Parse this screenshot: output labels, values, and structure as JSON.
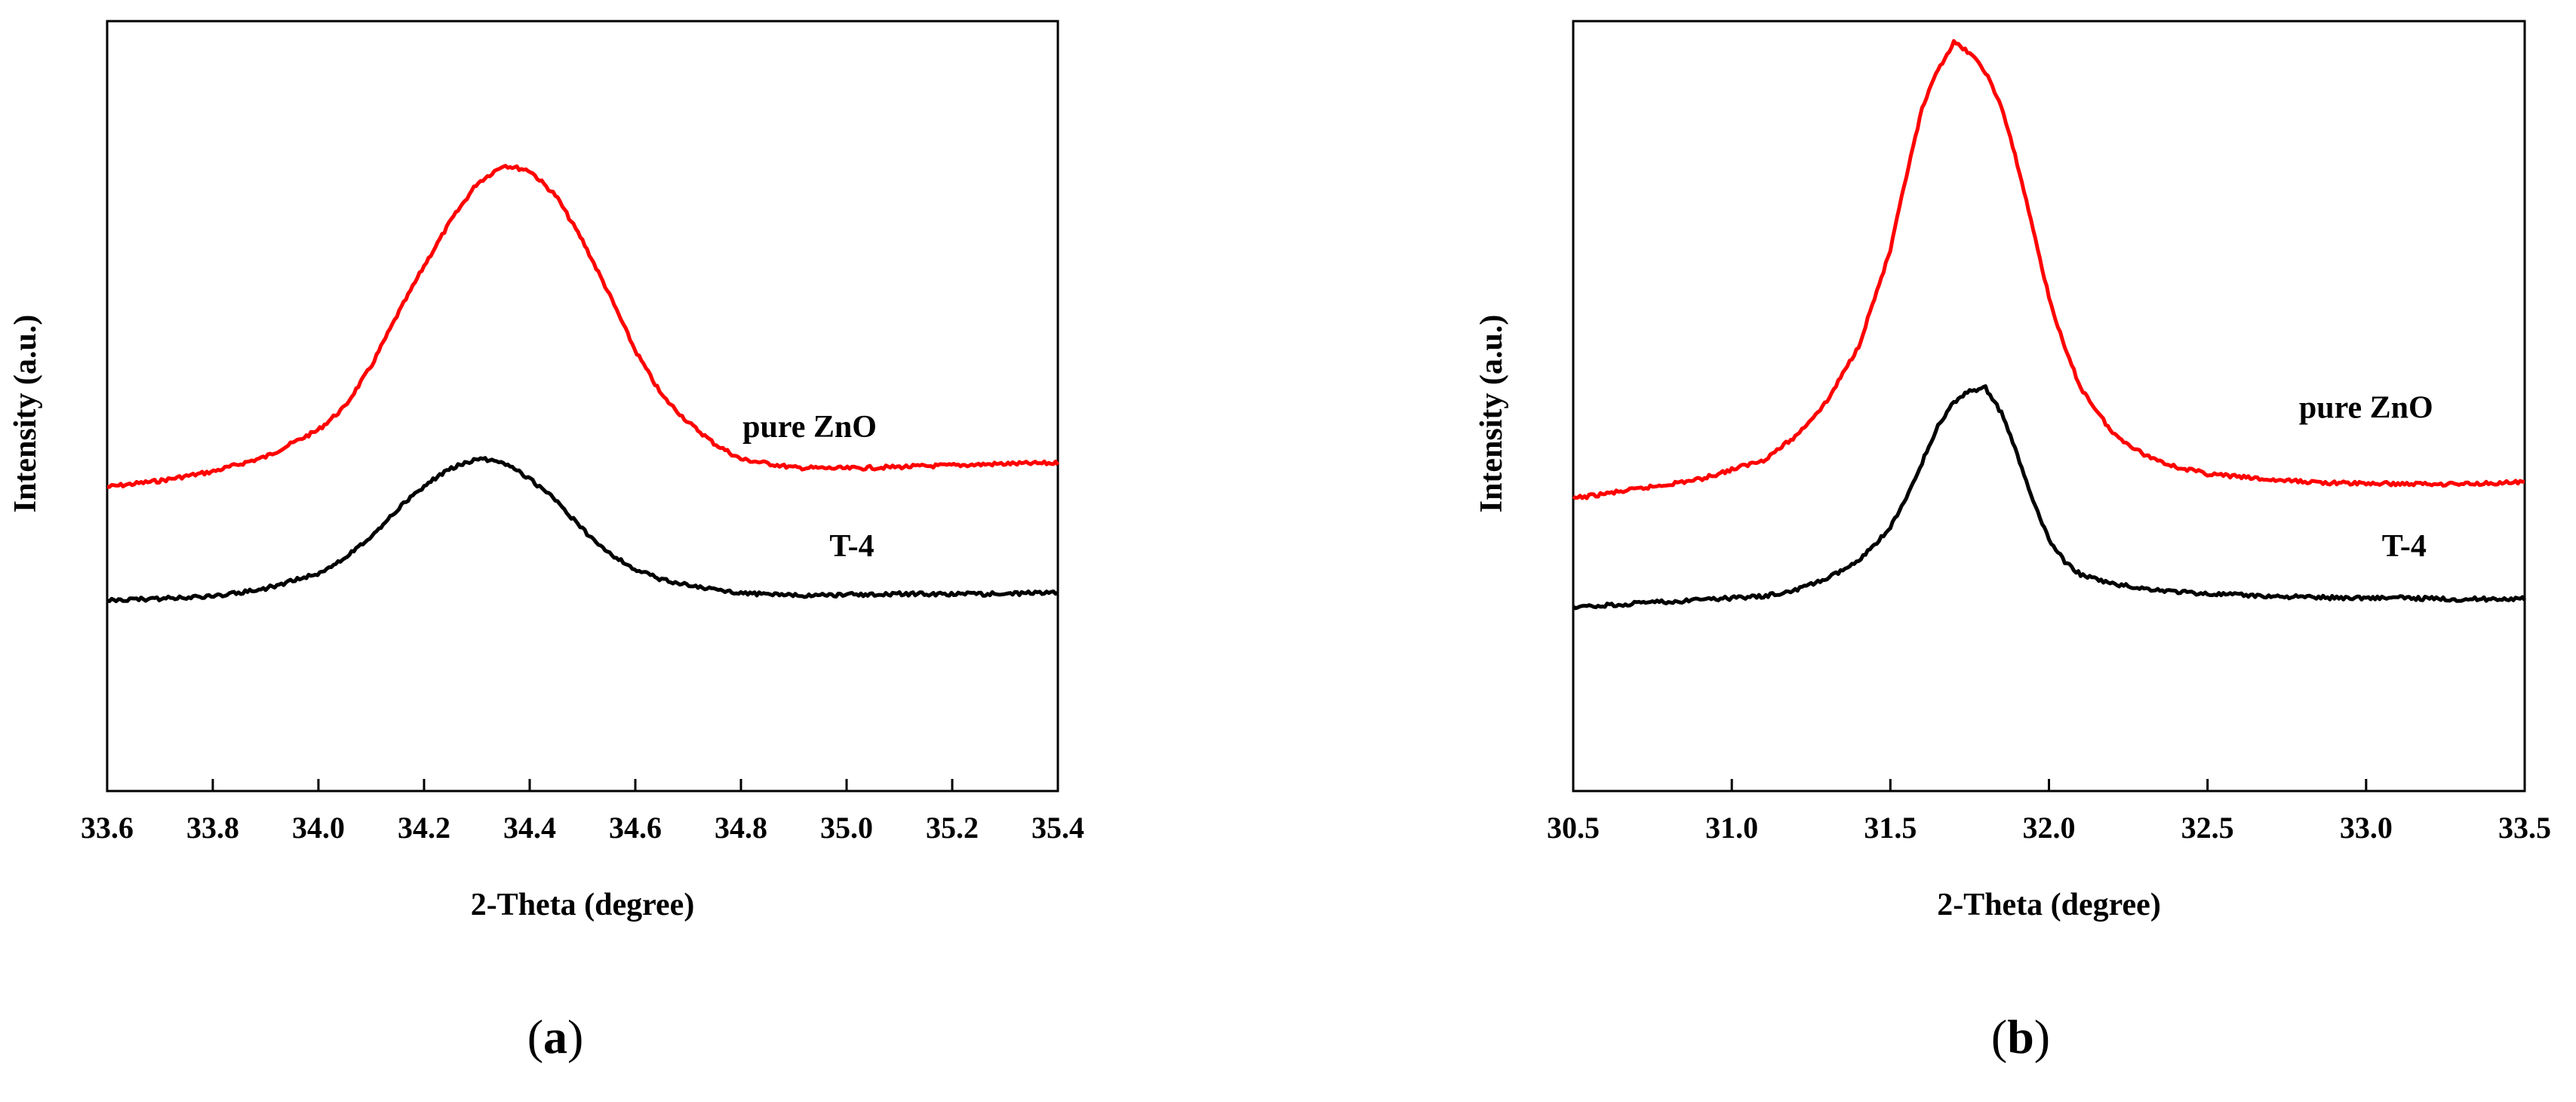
{
  "chart_data": [
    {
      "panel": "a",
      "caption": {
        "open": "(",
        "letter": "a",
        "close": ")"
      },
      "type": "line",
      "xlabel": "2-Theta (degree)",
      "ylabel": "Intensity (a.u.)",
      "xlim": [
        33.6,
        35.4
      ],
      "ylim": [
        0,
        100
      ],
      "xticks": [
        "33.6",
        "33.8",
        "34.0",
        "34.2",
        "34.4",
        "34.6",
        "34.8",
        "35.0",
        "35.2",
        "35.4"
      ],
      "grid": false,
      "series": [
        {
          "name": "pure ZnO",
          "color": "#ff0000",
          "x": [
            33.6,
            33.7,
            33.8,
            33.9,
            34.0,
            34.05,
            34.1,
            34.15,
            34.2,
            34.25,
            34.3,
            34.35,
            34.4,
            34.45,
            34.5,
            34.55,
            34.6,
            34.65,
            34.7,
            34.75,
            34.8,
            34.9,
            35.0,
            35.1,
            35.2,
            35.3,
            35.4
          ],
          "y": [
            39.5,
            40.3,
            41.5,
            43.4,
            46.9,
            49.9,
            55.2,
            61.9,
            68.2,
            74.0,
            78.9,
            81.3,
            80.6,
            77.3,
            71.5,
            64.6,
            57.2,
            51.4,
            47.9,
            45.1,
            43.1,
            42.0,
            41.9,
            42.1,
            42.3,
            42.5,
            42.6
          ],
          "label_at": [
            34.93,
            46
          ]
        },
        {
          "name": "T-4",
          "color": "#000000",
          "x": [
            33.6,
            33.7,
            33.8,
            33.9,
            34.0,
            34.05,
            34.1,
            34.15,
            34.2,
            34.25,
            34.3,
            34.35,
            34.4,
            34.45,
            34.5,
            34.55,
            34.6,
            34.65,
            34.7,
            34.75,
            34.8,
            34.9,
            35.0,
            35.1,
            35.2,
            35.3,
            35.4
          ],
          "y": [
            24.8,
            25.0,
            25.3,
            26.3,
            28.3,
            30.3,
            33.1,
            36.6,
            39.6,
            41.9,
            43.2,
            42.7,
            40.6,
            37.7,
            34.0,
            30.9,
            28.7,
            27.5,
            26.7,
            26.1,
            25.7,
            25.4,
            25.5,
            25.6,
            25.6,
            25.6,
            25.8
          ],
          "label_at": [
            35.01,
            30.5
          ]
        }
      ]
    },
    {
      "panel": "b",
      "caption": {
        "open": "(",
        "letter": "b",
        "close": ")"
      },
      "type": "line",
      "xlabel": "2-Theta (degree)",
      "ylabel": "Intensity (a.u.)",
      "xlim": [
        30.5,
        33.5
      ],
      "ylim": [
        0,
        100
      ],
      "xticks": [
        "30.5",
        "31.0",
        "31.5",
        "32.0",
        "32.5",
        "33.0",
        "33.5"
      ],
      "grid": false,
      "series": [
        {
          "name": "pure ZnO",
          "color": "#ff0000",
          "x": [
            30.5,
            30.7,
            30.9,
            31.1,
            31.2,
            31.3,
            31.4,
            31.5,
            31.55,
            31.6,
            31.65,
            31.7,
            31.75,
            31.8,
            31.85,
            31.9,
            31.95,
            32.0,
            32.05,
            32.1,
            32.2,
            32.3,
            32.4,
            32.5,
            32.7,
            32.9,
            33.1,
            33.3,
            33.5
          ],
          "y": [
            38.0,
            39.2,
            40.5,
            43.0,
            46.0,
            50.6,
            57.8,
            70.2,
            79.8,
            88.6,
            93.7,
            97.2,
            95.9,
            93.4,
            88.9,
            81.5,
            73.0,
            64.1,
            57.5,
            52.4,
            46.5,
            43.7,
            42.1,
            41.2,
            40.4,
            40.0,
            39.9,
            39.9,
            40.1
          ],
          "label_at": [
            33.0,
            48.5
          ]
        },
        {
          "name": "T-4",
          "color": "#000000",
          "x": [
            30.5,
            30.7,
            30.9,
            31.1,
            31.2,
            31.3,
            31.4,
            31.5,
            31.55,
            31.6,
            31.65,
            31.7,
            31.75,
            31.8,
            31.85,
            31.9,
            31.95,
            32.0,
            32.05,
            32.1,
            32.2,
            32.3,
            32.4,
            32.5,
            32.7,
            32.9,
            33.1,
            33.3,
            33.5
          ],
          "y": [
            23.8,
            24.4,
            24.8,
            25.3,
            26.1,
            27.6,
            29.8,
            34.2,
            38.0,
            42.7,
            47.4,
            50.5,
            52.0,
            52.4,
            49.1,
            43.7,
            37.6,
            32.6,
            29.8,
            28.1,
            26.9,
            26.3,
            25.9,
            25.6,
            25.3,
            25.1,
            25.1,
            24.9,
            25.0
          ],
          "label_at": [
            33.12,
            30.5
          ]
        }
      ]
    }
  ]
}
